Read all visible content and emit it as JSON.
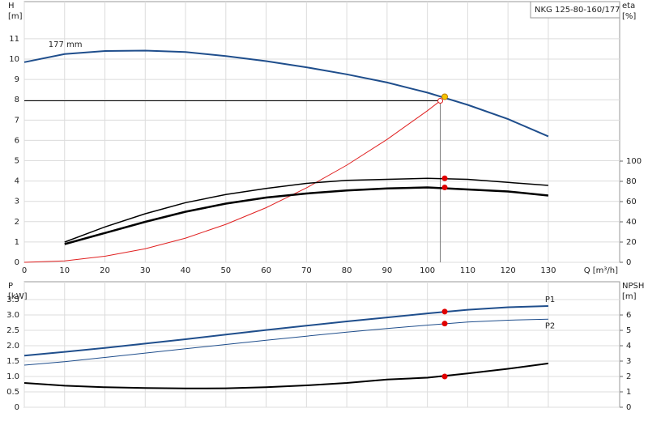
{
  "chart_data": [
    {
      "type": "line",
      "label_box": "NKG 125-80-160/177",
      "ylabel": "H",
      "yunit": "[m]",
      "y2label": "eta",
      "y2unit": "[%]",
      "xlabel": "Q [m³/h]",
      "xlim": [
        0,
        147.7
      ],
      "ylim": [
        0,
        12.83
      ],
      "y2lim": [
        0,
        257.6
      ],
      "xticks": [
        0,
        10,
        20,
        30,
        40,
        50,
        60,
        70,
        80,
        90,
        100,
        110,
        120,
        130
      ],
      "yticks": [
        0,
        1,
        2,
        3,
        4,
        5,
        6,
        7,
        8,
        9,
        10,
        11
      ],
      "y2ticks": [
        0,
        20,
        40,
        60,
        80,
        100
      ],
      "grid": true,
      "series": [
        {
          "name": "177 mm",
          "color": "#1f4e8c",
          "width": 2,
          "x": [
            0,
            10,
            20,
            30,
            40,
            50,
            60,
            70,
            80,
            90,
            100,
            110,
            120,
            130
          ],
          "values": [
            9.85,
            10.25,
            10.4,
            10.42,
            10.35,
            10.15,
            9.9,
            9.6,
            9.25,
            8.85,
            8.35,
            7.75,
            7.05,
            6.2
          ],
          "marker": {
            "x": 104.3,
            "value": 8.15,
            "color": "#f5c400"
          }
        },
        {
          "color": "#e02020",
          "width": 1,
          "x": [
            0,
            10,
            20,
            30,
            40,
            50,
            60,
            70,
            80,
            90,
            100,
            103.2
          ],
          "values": [
            0,
            0.07,
            0.3,
            0.67,
            1.19,
            1.87,
            2.69,
            3.66,
            4.78,
            6.05,
            7.46,
            7.95
          ]
        },
        {
          "axis": "y2",
          "color": "#000000",
          "width": 1.5,
          "x": [
            10,
            20,
            30,
            40,
            50,
            60,
            70,
            80,
            90,
            100,
            110,
            120,
            130
          ],
          "values": [
            20,
            35,
            48,
            59,
            67,
            73,
            78,
            81,
            82,
            83,
            82,
            79,
            76
          ],
          "marker": {
            "x": 104.3,
            "value": 83,
            "color": "#e00000"
          }
        },
        {
          "axis": "y2",
          "color": "#000000",
          "width": 2.5,
          "x": [
            10,
            20,
            30,
            40,
            50,
            60,
            70,
            80,
            90,
            100,
            110,
            120,
            130
          ],
          "values": [
            18,
            29,
            40,
            50,
            58,
            64,
            68,
            71,
            73,
            74,
            72,
            70,
            66
          ],
          "marker": {
            "x": 104.3,
            "value": 74,
            "color": "#e00000"
          }
        }
      ],
      "duty_point": {
        "x": 103.2,
        "y": 7.95
      }
    },
    {
      "type": "line",
      "ylabel": "P",
      "yunit": "[kW]",
      "y2label": "NPSH",
      "y2unit": "[m]",
      "xlim": [
        0,
        147.7
      ],
      "ylim": [
        0,
        4.08
      ],
      "y2lim": [
        0,
        8.16
      ],
      "xticks": [
        0,
        10,
        20,
        30,
        40,
        50,
        60,
        70,
        80,
        90,
        100,
        110,
        120,
        130
      ],
      "yticks": [
        0,
        0.5,
        {
          "value": 1,
          "label": "1.0"
        },
        1.5,
        {
          "value": 2,
          "label": "2.0"
        },
        2.5,
        {
          "value": 3,
          "label": "3.0"
        },
        3.5
      ],
      "y2ticks": [
        0,
        1,
        2,
        3,
        4,
        5,
        6
      ],
      "grid": true,
      "series": [
        {
          "name": "P1",
          "color": "#1f4e8c",
          "width": 2,
          "x": [
            0,
            10,
            20,
            30,
            40,
            50,
            60,
            70,
            80,
            90,
            100,
            110,
            120,
            130
          ],
          "values": [
            1.68,
            1.8,
            1.93,
            2.07,
            2.21,
            2.36,
            2.51,
            2.65,
            2.79,
            2.92,
            3.05,
            3.17,
            3.25,
            3.29
          ],
          "marker": {
            "x": 104.3,
            "value": 3.11,
            "color": "#e00000"
          }
        },
        {
          "name": "P2",
          "color": "#1f4e8c",
          "width": 1,
          "x": [
            0,
            10,
            20,
            30,
            40,
            50,
            60,
            70,
            80,
            90,
            100,
            110,
            120,
            130
          ],
          "values": [
            1.37,
            1.48,
            1.62,
            1.76,
            1.9,
            2.04,
            2.18,
            2.31,
            2.44,
            2.56,
            2.67,
            2.77,
            2.83,
            2.86
          ],
          "marker": {
            "x": 104.3,
            "value": 2.72,
            "color": "#e00000"
          }
        },
        {
          "axis": "y2",
          "color": "#000000",
          "width": 2,
          "x": [
            0,
            10,
            20,
            30,
            40,
            50,
            60,
            70,
            80,
            90,
            100,
            110,
            120,
            130
          ],
          "values": [
            1.58,
            1.4,
            1.3,
            1.25,
            1.22,
            1.23,
            1.3,
            1.42,
            1.58,
            1.8,
            1.92,
            2.2,
            2.5,
            2.85
          ],
          "marker": {
            "x": 104.3,
            "value": 2.0,
            "color": "#e00000"
          }
        }
      ]
    }
  ]
}
